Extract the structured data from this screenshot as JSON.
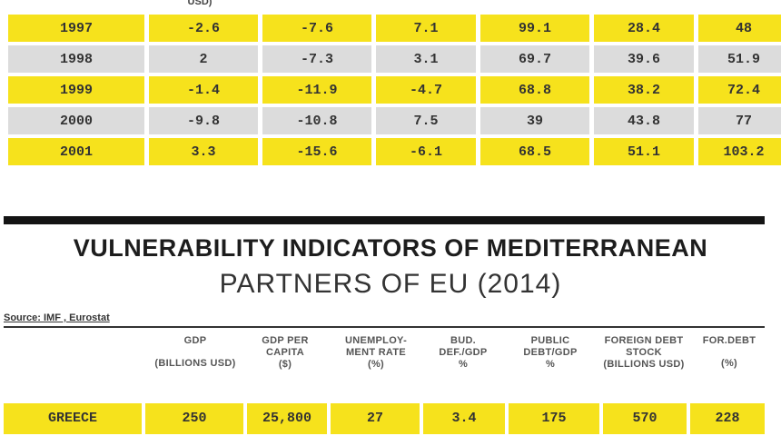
{
  "top_table": {
    "partial_header": "USD)",
    "rows": [
      {
        "year": "1997",
        "c1": "-2.6",
        "c2": "-7.6",
        "c3": "7.1",
        "c4": "99.1",
        "c5": "28.4",
        "c6": "48"
      },
      {
        "year": "1998",
        "c1": "2",
        "c2": "-7.3",
        "c3": "3.1",
        "c4": "69.7",
        "c5": "39.6",
        "c6": "51.9"
      },
      {
        "year": "1999",
        "c1": "-1.4",
        "c2": "-11.9",
        "c3": "-4.7",
        "c4": "68.8",
        "c5": "38.2",
        "c6": "72.4"
      },
      {
        "year": "2000",
        "c1": "-9.8",
        "c2": "-10.8",
        "c3": "7.5",
        "c4": "39",
        "c5": "43.8",
        "c6": "77"
      },
      {
        "year": "2001",
        "c1": "3.3",
        "c2": "-15.6",
        "c3": "-6.1",
        "c4": "68.5",
        "c5": "51.1",
        "c6": "103.2"
      }
    ]
  },
  "title_line1": "VULNERABILITY INDICATORS OF MEDITERRANEAN",
  "title_line2": "PARTNERS OF EU  (2014)",
  "source": "Source: IMF , Eurostat",
  "columns": {
    "gdp": {
      "line1": "GDP",
      "line2": "(BILLIONS USD)"
    },
    "gdp_per_capita": {
      "line1": "GDP PER CAPITA",
      "line2": "($)"
    },
    "unemployment": {
      "line1": "UNEMPLOY-MENT RATE",
      "line2": "(%)"
    },
    "budget_deficit": {
      "line1": "BUD. DEF./GDP",
      "line2": "%"
    },
    "public_debt": {
      "line1": "PUBLIC DEBT/GDP",
      "line2": "%"
    },
    "foreign_debt_stock": {
      "line1": "FOREIGN DEBT STOCK",
      "line2": "(BILLIONS USD)"
    },
    "foreign_debt": {
      "line1": "FOR.DEBT",
      "line2": "(%)"
    }
  },
  "greece_row": {
    "country": "GREECE",
    "gdp": "250",
    "gdp_per_capita": "25,800",
    "unemployment": "27",
    "budget_deficit": "3.4",
    "public_debt": "175",
    "foreign_debt_stock": "570",
    "foreign_debt": "228"
  },
  "colors": {
    "highlight": "#f6e21c",
    "alt_row": "#dcdcdc",
    "rule": "#141414"
  }
}
